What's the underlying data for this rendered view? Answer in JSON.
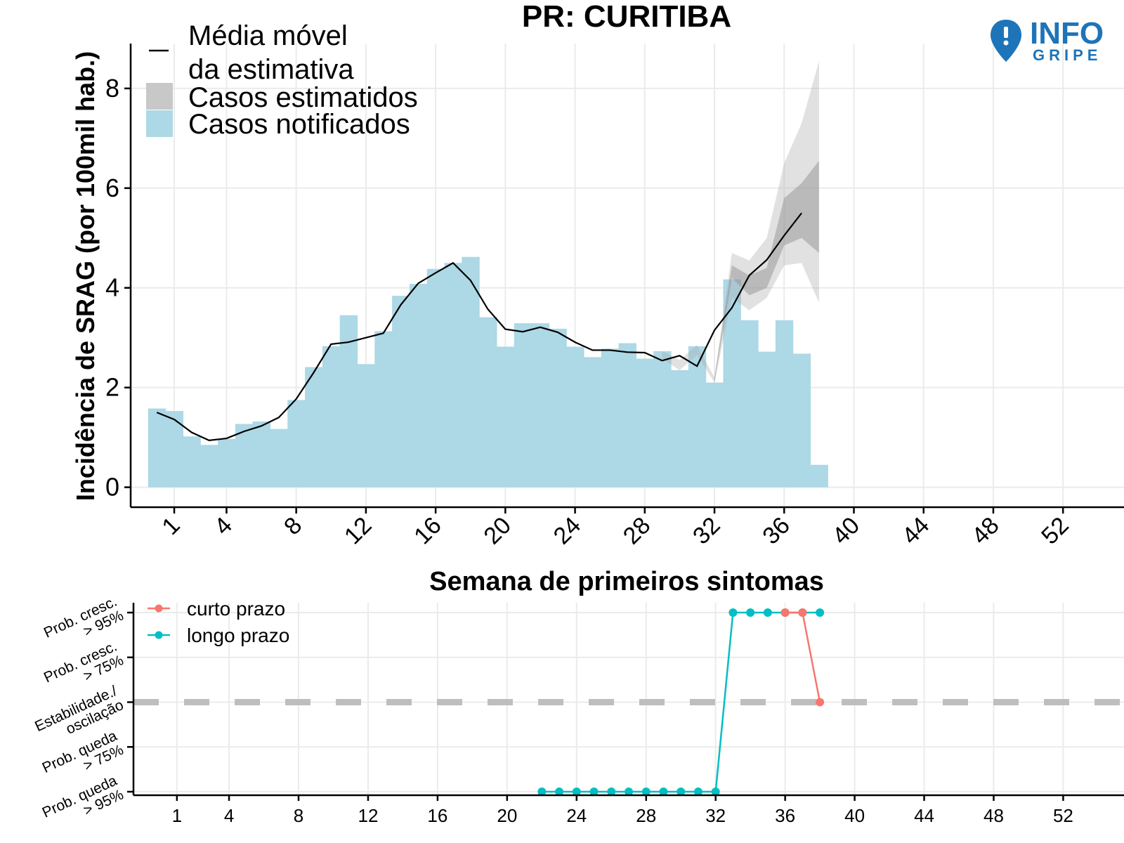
{
  "chart_data": [
    {
      "type": "bar",
      "title": "PR: CURITIBA",
      "xlabel": "Semana de primeiros sintomas",
      "ylabel": "Incidência de SRAG (por 100mil hab.)",
      "xlim": [
        -1.5,
        55.5
      ],
      "ylim": [
        -0.4,
        8.9
      ],
      "x_ticks": [
        1,
        4,
        8,
        12,
        16,
        20,
        24,
        28,
        32,
        36,
        40,
        44,
        48,
        52
      ],
      "y_ticks": [
        0,
        2,
        4,
        6,
        8
      ],
      "x_tick_labels": [
        "1",
        "4",
        "8",
        "12",
        "16",
        "20",
        "24",
        "28",
        "32",
        "36",
        "40",
        "44",
        "48",
        "52"
      ],
      "y_tick_labels": [
        "0",
        "2",
        "4",
        "6",
        "8"
      ],
      "grid": true,
      "legend_position": "top-left",
      "legend": {
        "media_movel": "Média móvel\nda estimativa",
        "media_movel_line1": "Média móvel",
        "media_movel_line2": "da estimativa",
        "estimados": "Casos estimatidos",
        "notificados": "Casos notificados"
      },
      "colors": {
        "notificados": "#add8e6",
        "estimados": "#c8c8c8",
        "media_movel": "#000000"
      },
      "notified": {
        "weeks": [
          0,
          1,
          2,
          3,
          4,
          5,
          6,
          7,
          8,
          9,
          10,
          11,
          12,
          13,
          14,
          15,
          16,
          17,
          18,
          19,
          20,
          21,
          22,
          23,
          24,
          25,
          26,
          27,
          28,
          29,
          30,
          31,
          32,
          33,
          34,
          35,
          36,
          37,
          38
        ],
        "values": [
          1.58,
          1.53,
          1.02,
          0.85,
          0.97,
          1.27,
          1.32,
          1.17,
          1.75,
          2.41,
          2.83,
          3.45,
          2.47,
          3.13,
          3.84,
          4.08,
          4.38,
          4.5,
          4.62,
          3.41,
          2.82,
          3.29,
          3.29,
          3.18,
          2.82,
          2.61,
          2.78,
          2.89,
          2.58,
          2.73,
          2.35,
          2.83,
          2.1,
          4.17,
          3.35,
          2.72,
          3.35,
          2.68,
          0.45
        ]
      },
      "moving_average": {
        "weeks": [
          0,
          1,
          2,
          3,
          4,
          5,
          6,
          7,
          8,
          9,
          10,
          11,
          12,
          13,
          14,
          15,
          16,
          17,
          18,
          19,
          20,
          21,
          22,
          23,
          24,
          25,
          26,
          27,
          28,
          29,
          30,
          31,
          32,
          33,
          34,
          35,
          36,
          37
        ],
        "values": [
          1.5,
          1.36,
          1.1,
          0.94,
          0.98,
          1.12,
          1.23,
          1.4,
          1.77,
          2.3,
          2.87,
          2.91,
          3.0,
          3.09,
          3.66,
          4.09,
          4.3,
          4.5,
          4.15,
          3.57,
          3.17,
          3.12,
          3.21,
          3.11,
          2.91,
          2.75,
          2.75,
          2.71,
          2.7,
          2.54,
          2.64,
          2.43,
          3.15,
          3.6,
          4.25,
          4.56,
          5.05,
          5.5
        ]
      },
      "estimate_band_outer": {
        "weeks": [
          29,
          30,
          31,
          32,
          33,
          34,
          35,
          36,
          37,
          38
        ],
        "lower": [
          2.58,
          2.35,
          2.65,
          2.1,
          3.8,
          3.55,
          3.8,
          4.45,
          4.5,
          3.7
        ],
        "upper": [
          2.73,
          2.55,
          2.85,
          2.2,
          4.7,
          4.55,
          5.0,
          6.5,
          7.3,
          8.55
        ]
      },
      "estimate_band_inner": {
        "weeks": [
          32,
          33,
          34,
          35,
          36,
          37,
          38
        ],
        "lower": [
          2.1,
          4.2,
          3.85,
          4.0,
          4.85,
          5.0,
          4.7
        ],
        "upper": [
          2.2,
          4.45,
          4.25,
          4.4,
          5.8,
          6.1,
          6.55
        ]
      }
    },
    {
      "type": "line",
      "xlim": [
        -1.5,
        55.5
      ],
      "x_ticks": [
        1,
        4,
        8,
        12,
        16,
        20,
        24,
        28,
        32,
        36,
        40,
        44,
        48,
        52
      ],
      "x_tick_labels": [
        "1",
        "4",
        "8",
        "12",
        "16",
        "20",
        "24",
        "28",
        "32",
        "36",
        "40",
        "44",
        "48",
        "52"
      ],
      "categories": [
        [
          "Prob. cresc.",
          "> 95%"
        ],
        [
          "Prob. cresc.",
          "> 75%"
        ],
        [
          "Estabilidade./",
          "oscilação"
        ],
        [
          "Prob. queda",
          "> 75%"
        ],
        [
          "Prob. queda",
          "> 95%"
        ]
      ],
      "reference_level": "Estabilidade./\noscilação",
      "grid": true,
      "legend_position": "top-left",
      "series": [
        {
          "name": "curto prazo",
          "color": "#f8766d",
          "weeks": [
            36,
            37,
            38
          ],
          "levels": [
            "Prob. cresc. > 95%",
            "Prob. cresc. > 95%",
            "Estabilidade./oscilação"
          ]
        },
        {
          "name": "longo prazo",
          "color": "#00bfc4",
          "weeks": [
            22,
            23,
            24,
            25,
            26,
            27,
            28,
            29,
            30,
            31,
            32,
            33,
            34,
            35,
            36,
            37,
            38
          ],
          "levels": [
            "Prob. queda > 95%",
            "Prob. queda > 95%",
            "Prob. queda > 95%",
            "Prob. queda > 95%",
            "Prob. queda > 95%",
            "Prob. queda > 95%",
            "Prob. queda > 95%",
            "Prob. queda > 95%",
            "Prob. queda > 95%",
            "Prob. queda > 95%",
            "Prob. queda > 95%",
            "Prob. cresc. > 95%",
            "Prob. cresc. > 95%",
            "Prob. cresc. > 95%",
            "Prob. cresc. > 95%",
            "Prob. cresc. > 95%",
            "Prob. cresc. > 95%"
          ]
        }
      ]
    }
  ],
  "logo": {
    "text_top": "INFO",
    "text_bottom": "GRIPE",
    "icon": "map-pin-exclamation-icon",
    "color": "#1e74b8"
  }
}
